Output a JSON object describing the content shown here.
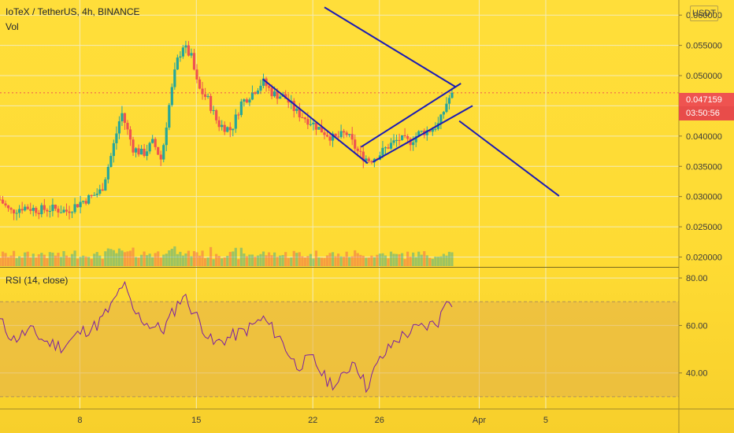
{
  "header": {
    "symbol_line": "IoTeX / TetherUS, 4h, BINANCE",
    "volume_label": "Vol",
    "rsi_label": "RSI (14, close)",
    "currency_button": "USDT"
  },
  "price_badge": {
    "price": "0.047159",
    "countdown": "03:50:56",
    "color": "#ef5350"
  },
  "colors": {
    "background": "#fedb33",
    "bull_candle": "#26a69a",
    "bear_candle": "#ef5350",
    "drawing_lines": "#1b1bb4",
    "rsi_line": "#7b1fa2",
    "rsi_band": "#e3b04a"
  },
  "chart_data": [
    {
      "type": "candlestick",
      "title": "IoTeX / TetherUS, 4h, BINANCE",
      "y_axis": {
        "ticks": [
          "0.060000",
          "0.055000",
          "0.050000",
          "0.045000",
          "0.040000",
          "0.035000",
          "0.030000",
          "0.025000",
          "0.020000"
        ],
        "range": [
          0.0185,
          0.0625
        ]
      },
      "x_axis": {
        "ticks": [
          "8",
          "15",
          "22",
          "26",
          "Apr",
          "5"
        ],
        "tick_days": [
          8,
          15,
          22,
          26,
          32,
          36
        ],
        "range_days": [
          3.2,
          44.0
        ]
      },
      "last_price": 0.047159,
      "anchors": [
        {
          "day": 3.2,
          "price": 0.0295
        },
        {
          "day": 3.8,
          "price": 0.0275
        },
        {
          "day": 4.6,
          "price": 0.0283
        },
        {
          "day": 5.5,
          "price": 0.0278
        },
        {
          "day": 6.3,
          "price": 0.028
        },
        {
          "day": 7.2,
          "price": 0.0276
        },
        {
          "day": 8.0,
          "price": 0.029
        },
        {
          "day": 8.7,
          "price": 0.03
        },
        {
          "day": 9.3,
          "price": 0.031
        },
        {
          "day": 9.9,
          "price": 0.037
        },
        {
          "day": 10.5,
          "price": 0.044
        },
        {
          "day": 11.2,
          "price": 0.038
        },
        {
          "day": 11.8,
          "price": 0.037
        },
        {
          "day": 12.4,
          "price": 0.039
        },
        {
          "day": 12.9,
          "price": 0.036
        },
        {
          "day": 13.3,
          "price": 0.044
        },
        {
          "day": 13.8,
          "price": 0.052
        },
        {
          "day": 14.2,
          "price": 0.055
        },
        {
          "day": 14.7,
          "price": 0.053
        },
        {
          "day": 15.1,
          "price": 0.048
        },
        {
          "day": 15.7,
          "price": 0.046
        },
        {
          "day": 16.3,
          "price": 0.042
        },
        {
          "day": 17.1,
          "price": 0.041
        },
        {
          "day": 17.7,
          "price": 0.0455
        },
        {
          "day": 18.3,
          "price": 0.047
        },
        {
          "day": 19.0,
          "price": 0.049
        },
        {
          "day": 19.6,
          "price": 0.047
        },
        {
          "day": 20.3,
          "price": 0.0465
        },
        {
          "day": 21.0,
          "price": 0.044
        },
        {
          "day": 21.8,
          "price": 0.0425
        },
        {
          "day": 22.5,
          "price": 0.041
        },
        {
          "day": 23.3,
          "price": 0.0395
        },
        {
          "day": 24.0,
          "price": 0.0405
        },
        {
          "day": 24.8,
          "price": 0.037
        },
        {
          "day": 25.4,
          "price": 0.036
        },
        {
          "day": 26.0,
          "price": 0.037
        },
        {
          "day": 26.6,
          "price": 0.0385
        },
        {
          "day": 27.2,
          "price": 0.0395
        },
        {
          "day": 27.8,
          "price": 0.039
        },
        {
          "day": 28.4,
          "price": 0.0405
        },
        {
          "day": 29.0,
          "price": 0.041
        },
        {
          "day": 29.6,
          "price": 0.042
        },
        {
          "day": 30.1,
          "price": 0.046
        },
        {
          "day": 30.5,
          "price": 0.0472
        }
      ]
    },
    {
      "type": "line",
      "title": "RSI (14, close)",
      "y_axis": {
        "ticks": [
          "80.00",
          "60.00",
          "40.00"
        ],
        "range": [
          25,
          84
        ]
      },
      "band": [
        30,
        70
      ],
      "anchors": [
        {
          "day": 3.2,
          "value": 62
        },
        {
          "day": 4.0,
          "value": 54
        },
        {
          "day": 5.0,
          "value": 58
        },
        {
          "day": 6.0,
          "value": 53
        },
        {
          "day": 7.0,
          "value": 51
        },
        {
          "day": 8.0,
          "value": 57
        },
        {
          "day": 9.0,
          "value": 60
        },
        {
          "day": 10.0,
          "value": 69
        },
        {
          "day": 10.6,
          "value": 78
        },
        {
          "day": 11.2,
          "value": 66
        },
        {
          "day": 12.0,
          "value": 61
        },
        {
          "day": 13.0,
          "value": 58
        },
        {
          "day": 14.2,
          "value": 73
        },
        {
          "day": 15.0,
          "value": 64
        },
        {
          "day": 16.0,
          "value": 52
        },
        {
          "day": 17.0,
          "value": 55
        },
        {
          "day": 18.0,
          "value": 58
        },
        {
          "day": 19.0,
          "value": 63
        },
        {
          "day": 20.0,
          "value": 55
        },
        {
          "day": 21.0,
          "value": 43
        },
        {
          "day": 22.0,
          "value": 46
        },
        {
          "day": 22.8,
          "value": 37
        },
        {
          "day": 23.5,
          "value": 35
        },
        {
          "day": 24.5,
          "value": 46
        },
        {
          "day": 25.2,
          "value": 34
        },
        {
          "day": 26.0,
          "value": 45
        },
        {
          "day": 27.0,
          "value": 54
        },
        {
          "day": 28.0,
          "value": 58
        },
        {
          "day": 29.0,
          "value": 60
        },
        {
          "day": 29.6,
          "value": 62
        },
        {
          "day": 30.1,
          "value": 73
        },
        {
          "day": 30.5,
          "value": 69
        }
      ]
    }
  ]
}
